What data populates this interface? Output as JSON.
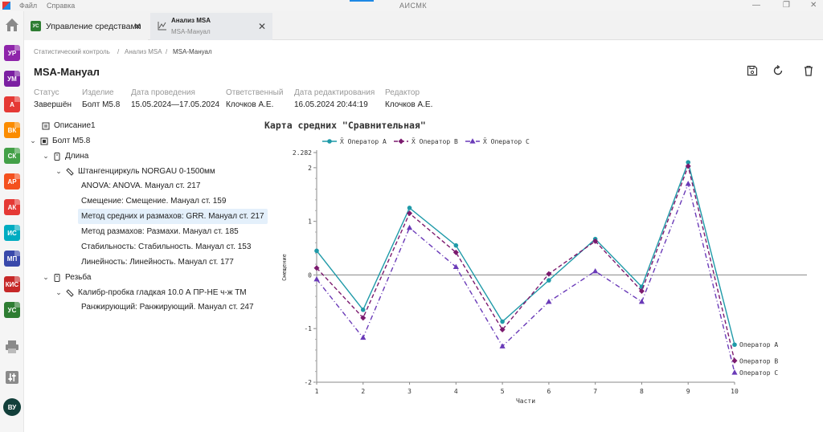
{
  "titlebar": {
    "menu": [
      "Файл",
      "Справка"
    ],
    "app_title": "АИСМК"
  },
  "rail": {
    "apps": [
      {
        "abbr": "УР",
        "color": "#8e24aa"
      },
      {
        "abbr": "УМ",
        "color": "#7b1fa2"
      },
      {
        "abbr": "А",
        "color": "#e53935"
      },
      {
        "abbr": "ВК",
        "color": "#fb8c00"
      },
      {
        "abbr": "СК",
        "color": "#43a047"
      },
      {
        "abbr": "АР",
        "color": "#f4511e"
      },
      {
        "abbr": "АК",
        "color": "#e53935"
      },
      {
        "abbr": "ИС",
        "color": "#00acc1"
      },
      {
        "abbr": "МП",
        "color": "#3949ab"
      },
      {
        "abbr": "КИС",
        "color": "#c62828"
      },
      {
        "abbr": "УС",
        "color": "#2e7d32"
      }
    ],
    "avatar": "ВУ"
  },
  "tabs": [
    {
      "title": "Управление средствами",
      "icon_text": "УС"
    },
    {
      "title": "Анализ MSA",
      "subtitle": "MSA-Мануал"
    }
  ],
  "breadcrumb": [
    "Статистический контроль",
    "Анализ MSA",
    "MSA-Мануал"
  ],
  "page": {
    "title": "MSA-Мануал"
  },
  "meta": [
    {
      "label": "Статус",
      "value": "Завершён"
    },
    {
      "label": "Изделие",
      "value": "Болт М5.8"
    },
    {
      "label": "Дата проведения",
      "value": "15.05.2024—17.05.2024"
    },
    {
      "label": "Ответственный",
      "value": "Клочков А.Е."
    },
    {
      "label": "Дата редактирования",
      "value": "16.05.2024 20:44:19"
    },
    {
      "label": "Редактор",
      "value": "Клочков А.Е."
    }
  ],
  "tree": {
    "description": "Описание1",
    "product": "Болт М5.8",
    "groups": [
      {
        "name": "Длина",
        "instrument": "Штангенциркуль NORGAU 0-1500мм",
        "items": [
          "ANOVA: ANOVA. Мануал ст. 217",
          "Смещение: Смещение. Мануал ст. 159",
          "Метод средних и размахов: GRR. Мануал ст. 217",
          "Метод размахов: Размахи. Мануал ст. 185",
          "Стабильность: Стабильность. Мануал ст. 153",
          "Линейность: Линейность. Мануал ст. 177"
        ]
      },
      {
        "name": "Резьба",
        "instrument": "Калибр-пробка гладкая 10.0 А ПР-НЕ ч-ж ТМ",
        "items": [
          "Ранжирующий: Ранжирующий. Мануал ст. 247"
        ]
      }
    ]
  },
  "chart_data": {
    "type": "line",
    "title": "Карта средних \"Сравнительная\"",
    "xlabel": "Части",
    "ylabel": "Смещение",
    "categories": [
      "1",
      "2",
      "3",
      "4",
      "5",
      "6",
      "7",
      "8",
      "9",
      "10"
    ],
    "ylim": [
      -2.0,
      2.282
    ],
    "yticks": [
      "-2",
      "-1",
      "0",
      "1",
      "2",
      "2.282"
    ],
    "legend_position": "top",
    "grid": false,
    "series": [
      {
        "name": "Оператор A",
        "legend": "X̄ Оператор A",
        "end_label": "Оператор A",
        "color": "#1f9aa8",
        "dash": "solid",
        "marker": "circle",
        "values": [
          0.45,
          -0.65,
          1.25,
          0.55,
          -0.87,
          -0.1,
          0.67,
          -0.22,
          2.1,
          -1.3
        ]
      },
      {
        "name": "Оператор B",
        "legend": "X̄ Оператор B",
        "end_label": "Оператор B",
        "color": "#7b1a6e",
        "dash": "dashed",
        "marker": "diamond",
        "values": [
          0.13,
          -0.8,
          1.15,
          0.42,
          -1.02,
          0.02,
          0.63,
          -0.3,
          2.03,
          -1.6
        ]
      },
      {
        "name": "Оператор C",
        "legend": "X̄ Оператор C",
        "end_label": "Оператор C",
        "color": "#6a3ab8",
        "dash": "dashdot",
        "marker": "triangle",
        "values": [
          -0.08,
          -1.17,
          0.88,
          0.15,
          -1.33,
          -0.5,
          0.07,
          -0.5,
          1.7,
          -1.82
        ]
      }
    ]
  }
}
